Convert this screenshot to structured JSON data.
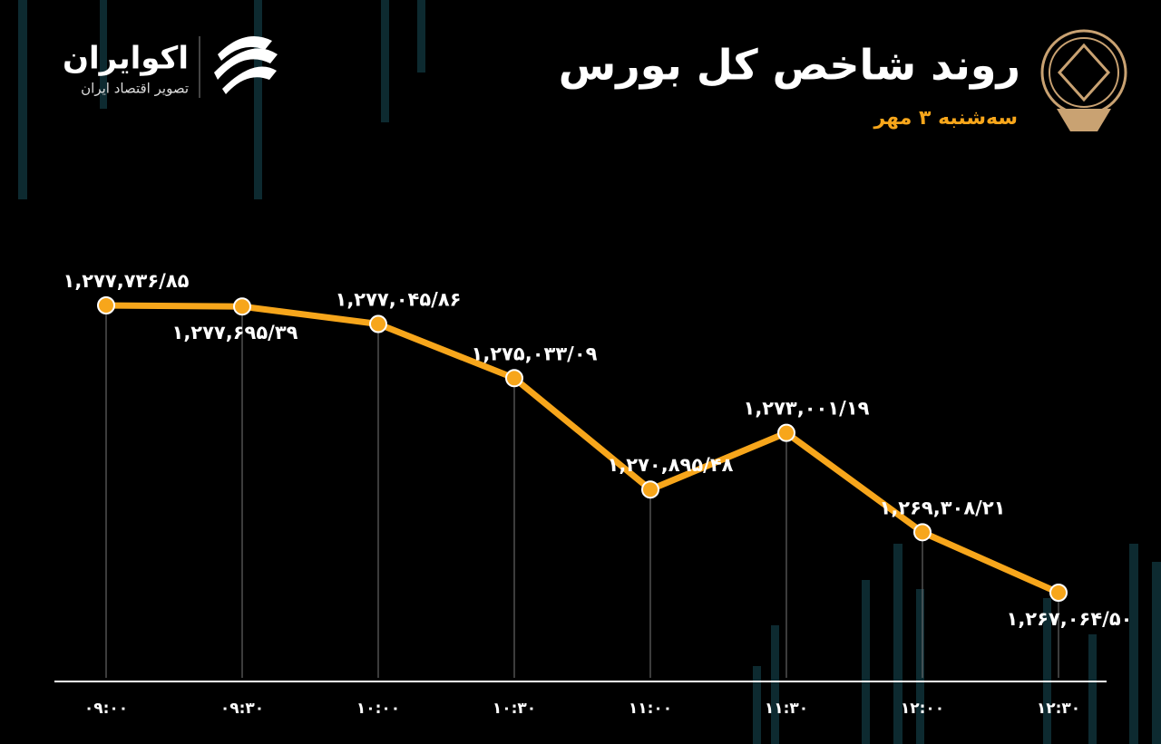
{
  "brand": {
    "name": "اکوایران",
    "tagline": "تصویر اقتصاد ایران"
  },
  "chart_data": {
    "type": "line",
    "title": "روند شاخص کل بورس",
    "subtitle": "سه‌شنبه ۳ مهر",
    "categories": [
      "۰۹:۰۰",
      "۰۹:۳۰",
      "۱۰:۰۰",
      "۱۰:۳۰",
      "۱۱:۰۰",
      "۱۱:۳۰",
      "۱۲:۰۰",
      "۱۲:۳۰"
    ],
    "values": [
      1277736.85,
      1277695.39,
      1277045.86,
      1275033.09,
      1270895.48,
      1273001.19,
      1269308.21,
      1267064.5
    ],
    "value_labels": [
      "۱,۲۷۷,۷۳۶/۸۵",
      "۱,۲۷۷,۶۹۵/۳۹",
      "۱,۲۷۷,۰۴۵/۸۶",
      "۱,۲۷۵,۰۳۳/۰۹",
      "۱,۲۷۰,۸۹۵/۴۸",
      "۱,۲۷۳,۰۰۱/۱۹",
      "۱,۲۶۹,۳۰۸/۲۱",
      "۱,۲۶۷,۰۶۴/۵۰"
    ],
    "color": "#f7a61b"
  }
}
